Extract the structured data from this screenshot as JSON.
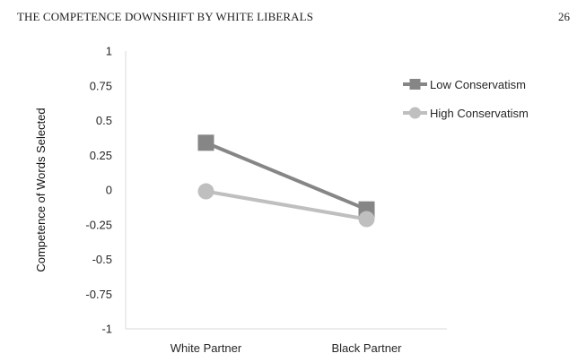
{
  "header": {
    "running_head": "THE COMPETENCE DOWNSHIFT BY WHITE LIBERALS",
    "page_number": "26"
  },
  "chart_data": {
    "type": "line",
    "title": "",
    "xlabel": "",
    "ylabel": "Competence of Words Selected",
    "categories": [
      "White Partner",
      "Black Partner"
    ],
    "ylim": [
      -1,
      1
    ],
    "yticks": [
      1,
      0.75,
      0.5,
      0.25,
      0,
      -0.25,
      -0.5,
      -0.75,
      -1
    ],
    "ytick_labels": [
      "1",
      "0.75",
      "0.5",
      "0.25",
      "0",
      "-0.25",
      "-0.5",
      "-0.75",
      "-1"
    ],
    "grid": false,
    "legend_position": "top-right",
    "series": [
      {
        "name": "Low Conservatism",
        "values": [
          0.34,
          -0.14
        ],
        "color": "#868686",
        "marker": "square"
      },
      {
        "name": "High Conservatism",
        "values": [
          -0.01,
          -0.21
        ],
        "color": "#bfbfbf",
        "marker": "circle"
      }
    ]
  }
}
